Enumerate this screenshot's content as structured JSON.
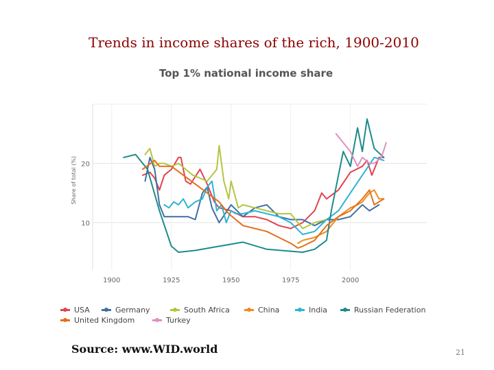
{
  "slide": {
    "title": "Trends in income shares of the rich, 1900-2010",
    "source": "Source: www.WID.world",
    "page_number": "21"
  },
  "chart_data": {
    "type": "line",
    "title": "Top 1% national income share",
    "xlabel": "",
    "ylabel": "Share of total (%)",
    "xlim": [
      1892,
      2032
    ],
    "ylim": [
      2,
      30
    ],
    "x_ticks": [
      1900,
      1925,
      1950,
      1975,
      2000
    ],
    "y_ticks": [
      10,
      20
    ],
    "grid": true,
    "legend_position": "bottom",
    "series": [
      {
        "name": "USA",
        "color": "#e0434f",
        "x": [
          1913,
          1916,
          1918,
          1920,
          1922,
          1925,
          1928,
          1929,
          1931,
          1933,
          1937,
          1940,
          1943,
          1945,
          1950,
          1955,
          1960,
          1965,
          1970,
          1975,
          1980,
          1985,
          1986,
          1988,
          1990,
          1995,
          2000,
          2005,
          2007,
          2009,
          2012,
          2014
        ],
        "y": [
          18,
          18.5,
          17.5,
          15.5,
          18,
          19,
          21,
          21,
          17,
          16.5,
          19,
          16.5,
          13.5,
          12.5,
          12,
          11,
          11,
          10.5,
          9.5,
          9,
          10,
          12,
          13,
          15,
          14,
          15.5,
          18.5,
          19.5,
          20.5,
          18,
          21,
          21
        ]
      },
      {
        "name": "Germany",
        "color": "#3f6fa3",
        "x": [
          1914,
          1916,
          1918,
          1920,
          1922,
          1925,
          1928,
          1932,
          1935,
          1938,
          1940,
          1942,
          1945,
          1950,
          1955,
          1960,
          1965,
          1970,
          1975,
          1980,
          1985,
          1990,
          1995,
          2000,
          2005,
          2008,
          2012
        ],
        "y": [
          17,
          21,
          19,
          13,
          11,
          11,
          11,
          11,
          10.5,
          15,
          16,
          12.5,
          10,
          13,
          11,
          12.5,
          13,
          11,
          10.5,
          10.5,
          9.5,
          10.5,
          10.5,
          11,
          13,
          12,
          13
        ]
      },
      {
        "name": "South Africa",
        "color": "#b5c441",
        "x": [
          1914,
          1916,
          1918,
          1920,
          1922,
          1925,
          1928,
          1931,
          1934,
          1937,
          1940,
          1944,
          1945,
          1947,
          1949,
          1950,
          1953,
          1955,
          1960,
          1965,
          1970,
          1975,
          1980,
          1985,
          1990
        ],
        "y": [
          21.5,
          22.5,
          19.5,
          20,
          20,
          19.5,
          20,
          19,
          18,
          17.5,
          17,
          19,
          23,
          17,
          14,
          17,
          12.5,
          13,
          12.5,
          12,
          11.5,
          11.5,
          9,
          10,
          10.5
        ]
      },
      {
        "name": "China",
        "color": "#f08a1c",
        "x": [
          1978,
          1980,
          1985,
          1990,
          1995,
          2000,
          2003,
          2005,
          2008,
          2010,
          2012,
          2014
        ],
        "y": [
          6.5,
          7,
          7.5,
          8.5,
          11,
          12.5,
          13,
          13.5,
          15,
          15.5,
          14,
          14
        ]
      },
      {
        "name": "India",
        "color": "#2db3d6",
        "x": [
          1922,
          1924,
          1926,
          1928,
          1930,
          1932,
          1935,
          1938,
          1940,
          1942,
          1944,
          1946,
          1948,
          1950,
          1952,
          1955,
          1960,
          1965,
          1970,
          1975,
          1980,
          1985,
          1990,
          1995,
          2000,
          2005,
          2010,
          2014
        ],
        "y": [
          13,
          12.5,
          13.5,
          13,
          14,
          12.5,
          13.5,
          14,
          16,
          17,
          12,
          13,
          10,
          12,
          11.5,
          11.5,
          12,
          11.5,
          11,
          10,
          8,
          8.5,
          10.5,
          12,
          15,
          18,
          21,
          20.5
        ]
      },
      {
        "name": "Russian Federation",
        "color": "#1d8a8a",
        "x": [
          1905,
          1910,
          1915,
          1920,
          1925,
          1928,
          1935,
          1945,
          1955,
          1965,
          1980,
          1985,
          1990,
          1992,
          1995,
          1997,
          2000,
          2003,
          2005,
          2007,
          2010,
          2014
        ],
        "y": [
          21,
          21.5,
          19,
          12,
          6,
          5,
          5.3,
          6,
          6.7,
          5.5,
          5,
          5.5,
          7,
          12,
          18,
          22,
          19.5,
          26,
          22,
          27.5,
          22.5,
          21
        ]
      },
      {
        "name": "United Kingdom",
        "color": "#e46f1b",
        "x": [
          1913,
          1918,
          1920,
          1925,
          1930,
          1935,
          1940,
          1945,
          1949,
          1955,
          1960,
          1965,
          1970,
          1975,
          1978,
          1980,
          1985,
          1990,
          1995,
          2000,
          2005,
          2008,
          2010,
          2014
        ],
        "y": [
          19,
          20.5,
          19.5,
          19.5,
          18,
          16.5,
          15,
          13.5,
          11.5,
          9.5,
          9,
          8.5,
          7.5,
          6.5,
          5.7,
          6,
          7,
          9.5,
          11,
          12,
          14,
          15.5,
          13,
          14
        ]
      },
      {
        "name": "Turkey",
        "color": "#e08fc0",
        "x": [
          1994,
          1997,
          2000,
          2003,
          2005,
          2008,
          2010,
          2013,
          2015
        ],
        "y": [
          25,
          23.5,
          22,
          19.5,
          21,
          20,
          20,
          21,
          23.5
        ]
      }
    ]
  }
}
